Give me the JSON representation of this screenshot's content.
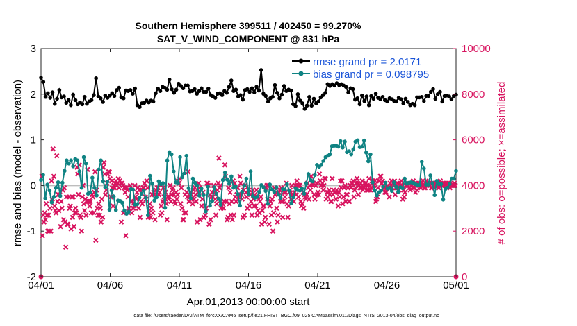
{
  "chart_data": {
    "type": "line",
    "title_line1": "Southern Hemisphere 399511 / 402450 = 99.270%",
    "title_line2": "SAT_V_WIND_COMPONENT @ 831 hPa",
    "ylabel_left": "rmse and bias (model - observation)",
    "ylabel_right": "# of obs: o=possible; ×=assimilated",
    "xlabel": "Apr.01,2013 00:00:00 start",
    "footer": "data file: /Users/raeder/DAI/ATM_forcXX/CAM6_setup/f.e21.FHIST_BGC.f09_025.CAM6assim.011/Diags_NTrS_2013-04/obs_diag_output.nc",
    "x_ticks": [
      "04/01",
      "04/06",
      "04/11",
      "04/16",
      "04/21",
      "04/26",
      "05/01"
    ],
    "xlim_days": [
      0,
      30
    ],
    "ylim_left": [
      -2,
      3
    ],
    "y_ticks_left": [
      "-2",
      "-1",
      "0",
      "1",
      "2",
      "3"
    ],
    "ylim_right": [
      0,
      10000
    ],
    "y_ticks_right": [
      "0",
      "2000",
      "4000",
      "6000",
      "8000",
      "10000"
    ],
    "zero_line": 0,
    "colors": {
      "rmse": "#000000",
      "bias": "#0f8383",
      "obs": "#d8145f",
      "zero": "#bdbdbd",
      "legend_text": "#1a54d8"
    },
    "legend_position": "top-right",
    "series": [
      {
        "name": "rmse grand pr = 2.0171",
        "axis": "left",
        "values": [
          2.36,
          2.27,
          1.94,
          2.02,
          1.92,
          2.04,
          1.79,
          1.9,
          2.09,
          1.93,
          1.95,
          1.81,
          1.87,
          1.76,
          1.99,
          1.87,
          1.78,
          1.82,
          1.78,
          1.94,
          1.79,
          1.84,
          1.87,
          1.98,
          2.35,
          1.95,
          1.91,
          1.83,
          1.97,
          1.92,
          1.97,
          2.02,
          1.96,
          2.09,
          2.14,
          1.93,
          1.91,
          2.08,
          2.07,
          2.09,
          2.01,
          2.12,
          1.76,
          1.72,
          1.8,
          1.81,
          1.86,
          1.82,
          1.86,
          1.84,
          2.02,
          2.12,
          2.07,
          2.16,
          2.14,
          2.1,
          2.32,
          2.11,
          2.03,
          2.1,
          2.23,
          2.18,
          2.13,
          2.19,
          2.19,
          2.06,
          2.07,
          2.11,
          2.01,
          2.07,
          2.13,
          2.05,
          2.05,
          2.12,
          1.98,
          1.95,
          1.92,
          2.01,
          2.02,
          1.98,
          2.07,
          2.03,
          2.16,
          2.3,
          2.07,
          2.1,
          1.95,
          1.98,
          1.88,
          2.09,
          2.11,
          2.05,
          2.13,
          2.04,
          2.16,
          2.08,
          2.53,
          2.01,
          1.96,
          1.84,
          1.91,
          1.94,
          2.2,
          2.03,
          1.91,
          1.99,
          2.18,
          2.07,
          2.1,
          2.08,
          1.78,
          1.74,
          2.0,
          1.86,
          1.8,
          1.68,
          1.75,
          1.94,
          1.75,
          1.9,
          1.8,
          1.84,
          1.93,
          1.98,
          2.03,
          2.22,
          2.18,
          2.22,
          2.19,
          2.24,
          2.2,
          2.22,
          2.19,
          2.16,
          2.04,
          2.13,
          2.11,
          1.88,
          1.91,
          1.78,
          1.97,
          1.85,
          1.95,
          1.76,
          1.96,
          1.9,
          2.01,
          1.92,
          1.89,
          1.94,
          1.87,
          1.84,
          1.91,
          1.89,
          1.85,
          1.84,
          1.92,
          1.89,
          1.8,
          1.9,
          1.83,
          1.76,
          1.79,
          1.76,
          1.93,
          1.93,
          1.94,
          1.85,
          1.96,
          1.96,
          2.05,
          2.11,
          1.9,
          2.0,
          2.05,
          1.84,
          1.96,
          1.97,
          1.95,
          1.89,
          1.96,
          1.99
        ]
      },
      {
        "name": "bias grand pr = 0.098795",
        "axis": "left",
        "values": [
          0.12,
          0.23,
          -0.28,
          0.02,
          -0.11,
          -0.37,
          -0.25,
          -0.05,
          0.07,
          -0.23,
          0.06,
          0.32,
          0.55,
          0.48,
          0.55,
          0.42,
          0.58,
          0.55,
          0.31,
          -0.05,
          0.62,
          0.48,
          -0.18,
          -0.15,
          0.17,
          -0.05,
          -0.22,
          0.35,
          0.55,
          0.09,
          -0.04,
          0.08,
          -0.53,
          -0.11,
          -0.24,
          -0.54,
          -0.33,
          -0.34,
          -0.38,
          -0.55,
          -0.62,
          -0.58,
          -0.08,
          -0.09,
          -0.42,
          -0.41,
          -0.27,
          -0.18,
          -0.11,
          -0.27,
          -0.65,
          0.21,
          0.04,
          -0.33,
          -0.26,
          0.09,
          0.03,
          0.05,
          -0.49,
          0.55,
          0.73,
          0.68,
          0.31,
          0.07,
          0.05,
          0.62,
          0.18,
          0.26,
          0.65,
          -0.06,
          -0.28,
          0.15,
          0.06,
          0.0,
          -0.22,
          -0.07,
          -0.21,
          -0.57,
          -0.02,
          -0.44,
          -0.34,
          -0.04,
          -0.18,
          -0.29,
          -0.42,
          0.12,
          0.28,
          0.13,
          0.04,
          0.2,
          -0.05,
          -0.02,
          -0.19,
          -0.44,
          -0.14,
          0.0,
          0.15,
          -0.19,
          0.31,
          -0.23,
          -0.27,
          -0.25,
          -0.14,
          0.01,
          -0.04,
          -0.12,
          -0.4,
          0.02,
          -0.09,
          -0.14,
          -0.04,
          -0.2,
          -0.27,
          -0.08,
          -0.09,
          0.03,
          -0.11,
          -0.39,
          -0.26,
          -0.06,
          -0.1,
          -0.11,
          -0.07,
          -0.18,
          0.05,
          0.25,
          0.12,
          0.09,
          0.23,
          0.45,
          0.41,
          0.45,
          0.54,
          0.62,
          0.65,
          0.68,
          0.86,
          0.87,
          0.87,
          0.85,
          0.97,
          0.83,
          0.96,
          0.73,
          0.75,
          0.68,
          0.79,
          0.96,
          0.99,
          0.84,
          0.85,
          0.98,
          0.72,
          0.53,
          0.68,
          0.07,
          -0.11,
          -0.22,
          -0.15,
          -0.11,
          -0.02,
          0.06,
          -0.07,
          -0.05,
          -0.12,
          0.07,
          -0.03,
          -0.14,
          -0.04,
          -0.06,
          0.15,
          0.04,
          0.06,
          0.07,
          0.06,
          0.03,
          0.01,
          0.01,
          0.52,
          0.37,
          0.02,
          0.02,
          0.22,
          0.05,
          -0.21,
          0.1,
          0.03,
          0.03,
          -0.31,
          -0.08,
          -0.05,
          0.03,
          0.15,
          0.15,
          0.32
        ]
      },
      {
        "name": "# of obs assimilated",
        "axis": "right",
        "marker": "x",
        "values": [
          0,
          4400,
          1800,
          2700,
          2400,
          2800,
          2500,
          3200,
          2700,
          2000,
          2700,
          2000,
          3000,
          2000,
          4200,
          3400,
          5600,
          4400,
          3100,
          2900,
          2800,
          5300,
          3300,
          3600,
          2900,
          3600,
          2200,
          3300,
          3000,
          3800,
          2500,
          3900,
          2400,
          1300,
          3500,
          2300,
          2300,
          3500,
          3000,
          3100,
          2100,
          3500,
          2600,
          3500,
          2200,
          2800,
          3000,
          2800,
          4800,
          4500,
          3600,
          4900,
          2700,
          2600,
          2000,
          3500,
          4000,
          3200,
          2900,
          3400,
          2700,
          3300,
          4700,
          3300,
          3300,
          3100,
          3300,
          2800,
          3600,
          3500,
          2800,
          3700,
          4600,
          1600,
          3800,
          3000,
          2700,
          3200,
          2700,
          3000,
          2400,
          3400,
          2600,
          4800,
          5000,
          4500,
          3600,
          3800,
          4100,
          4500,
          4600,
          4600,
          4300,
          3500,
          4200,
          3900,
          3100,
          4000,
          3900,
          4100,
          4200,
          4000,
          4100,
          4300,
          3900,
          4200,
          4100,
          2400,
          4100,
          4000,
          2800,
          3900,
          3700,
          1800,
          3900,
          3800,
          3500,
          3000,
          2900,
          4000,
          3300,
          2800,
          3300,
          3000,
          3100,
          4000,
          3500,
          3400,
          3700,
          3900,
          3000,
          3800,
          2600,
          3300,
          3800,
          3200,
          3900,
          3900,
          4100,
          3500,
          3400,
          4200,
          3900,
          2600,
          2800,
          3200,
          2600,
          3000,
          3600,
          2800,
          3700,
          3600,
          2500,
          3800,
          3700,
          3900,
          3900,
          3600,
          3700,
          2700,
          3100,
          2800,
          3300,
          3900,
          3500,
          3300,
          3700,
          3200,
          2500,
          3500,
          3400,
          3500,
          4000,
          3300,
          3600,
          3800,
          3900,
          3600,
          3300,
          3200,
          3700,
          3400,
          3600,
          4200,
          4100,
          4300,
          3200,
          3900,
          3000,
          2500,
          2500,
          2800,
          3600,
          2800,
          3700,
          3500,
          4600,
          3300,
          3500,
          3700,
          3600,
          3400,
          3200,
          3800,
          3400,
          3900,
          3600,
          3300,
          2400,
          3700,
          4100,
          3900,
          2500,
          3800,
          3100,
          3400,
          3700,
          2600,
          3100,
          2700,
          3000,
          4100,
          4100,
          4000,
          2300,
          3600,
          2500,
          3500,
          3700,
          3500,
          4000,
          3700,
          3400,
          2700,
          3200,
          3800,
          4100,
          5200,
          3900,
          4000,
          3000,
          3100,
          3200,
          3000,
          3300,
          4900,
          4400,
          3300,
          2500,
          2600,
          3900,
          3200,
          3700,
          2700,
          3300,
          2500,
          4200,
          2700,
          4100,
          3500,
          3300,
          3600,
          3900,
          3500,
          3600,
          4400,
          4100,
          3600,
          3400,
          2600,
          3800,
          2700,
          4000,
          3700,
          3500,
          3000,
          3800,
          3700,
          3100,
          3600,
          3300,
          2700,
          3800,
          3400,
          3100,
          3600,
          3100,
          3800,
          2700,
          2900,
          3400,
          2800,
          3300,
          3500,
          2300,
          2900,
          3100,
          3100,
          2400,
          2600,
          3900,
          4000,
          3400,
          4000,
          2300,
          3100,
          3300,
          2700,
          3400,
          2000,
          2800,
          3900,
          3600,
          3700,
          3000,
          2400,
          2700,
          3700,
          3800,
          3300,
          3900,
          3300,
          2600,
          3300,
          3700,
          3500,
          3700,
          4100,
          3200,
          2600,
          3100,
          3700,
          3800,
          3400,
          4000,
          3600,
          3600,
          3300,
          3700,
          4000,
          3600,
          4200,
          4000,
          3500,
          4000,
          4000,
          3300,
          3100,
          3200,
          3700,
          3000,
          3600,
          3500,
          3400,
          3600,
          4100,
          3900,
          3400,
          4000,
          3800,
          4400,
          4100,
          4000,
          4100,
          3600,
          3400,
          4000,
          4100,
          3600,
          3700,
          3600,
          4500,
          4200,
          4000,
          4000,
          4100,
          3800,
          4000,
          4300,
          4300,
          3400,
          3700,
          3500,
          3700,
          3800,
          3600,
          3300,
          3300,
          4300,
          3600,
          3800,
          3700,
          3700,
          3400,
          3800,
          3700,
          3100,
          3700,
          3500,
          4200,
          3900,
          4200,
          3200,
          3500,
          3900,
          4000,
          3300,
          3600,
          3600,
          3900,
          3300,
          3300,
          4000,
          3900,
          4100,
          4100,
          4200,
          3500,
          3800,
          3900,
          4100,
          4300,
          4100,
          3600,
          4000,
          3900,
          4100,
          3900,
          4200,
          3800,
          3900,
          4100,
          4000,
          4100,
          3800,
          4000,
          3800,
          4300,
          4000,
          3800,
          3900,
          4200,
          4200,
          4100,
          4000,
          4200,
          3300,
          3400,
          3500,
          3900,
          4200,
          4200,
          4400,
          4400,
          4100,
          4200,
          4000,
          3900,
          3700,
          3900,
          3700,
          3900,
          4000,
          3900,
          3500,
          4100,
          4000,
          4200,
          3900,
          4100,
          4100,
          4200,
          3600,
          3900,
          3900,
          4100,
          3900,
          3800,
          4100,
          4000,
          4200,
          4000,
          3400,
          3800,
          3500,
          3700,
          4000,
          4000,
          4000,
          4000,
          4100,
          3900,
          3800,
          4100,
          4000,
          3900,
          4200,
          3900,
          4000,
          3700,
          4100,
          3800,
          4000,
          4100,
          4000,
          4100,
          3900,
          4100,
          4000,
          4200,
          4000,
          3900,
          3900,
          4200,
          4000,
          4100,
          4000,
          4100,
          4000,
          4100,
          3900,
          3900,
          4100,
          4100,
          3900,
          4100,
          4000,
          4000,
          4100,
          4000,
          3900,
          4100,
          4200,
          4100,
          4000,
          4100,
          4000,
          4100,
          4000,
          4000,
          4100,
          4000,
          4000,
          4100,
          4000,
          3900,
          4100,
          4000,
          4000,
          4000,
          4000,
          4100,
          4000,
          0
        ]
      }
    ]
  }
}
